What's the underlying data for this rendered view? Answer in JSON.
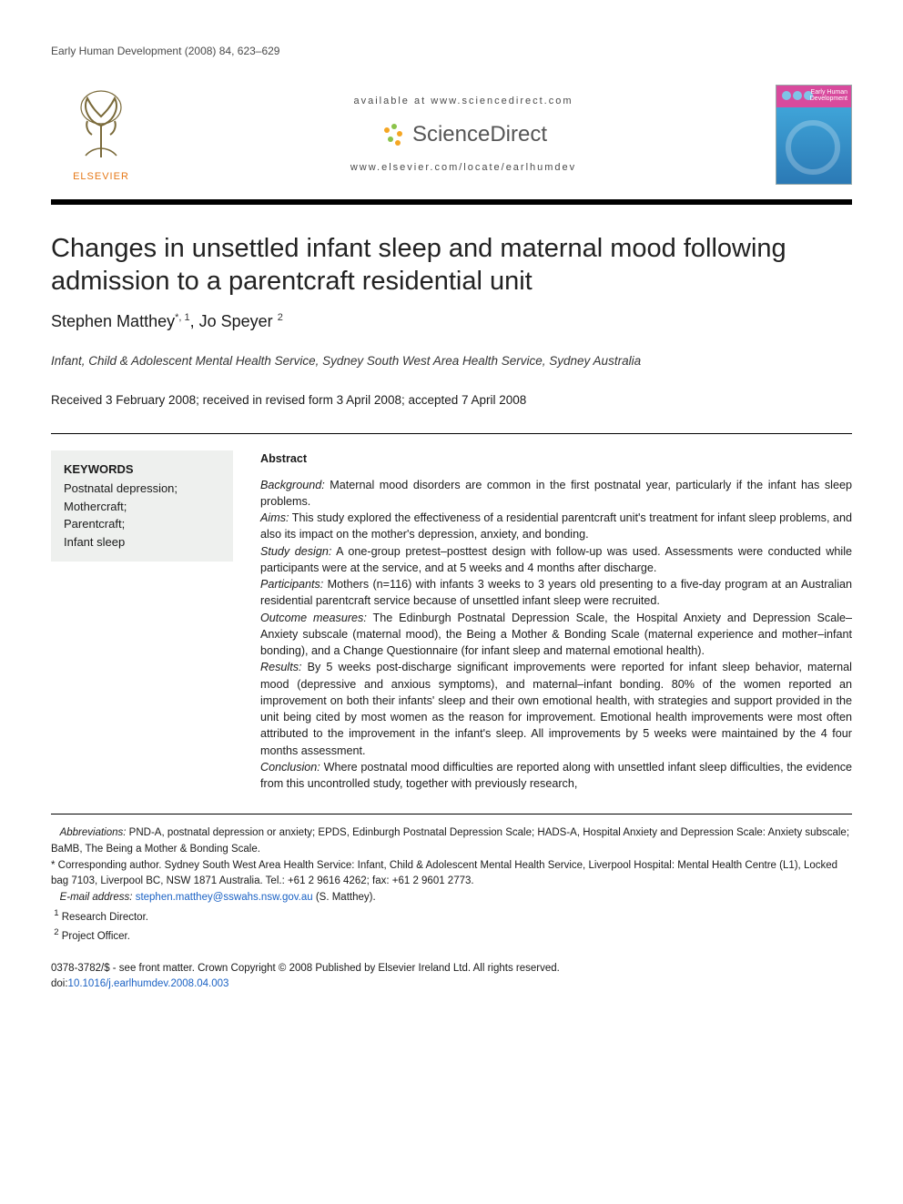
{
  "running_head": "Early Human Development (2008) 84, 623–629",
  "masthead": {
    "publisher_label": "ELSEVIER",
    "available_at": "available at www.sciencedirect.com",
    "platform_name": "ScienceDirect",
    "locate_url": "www.elsevier.com/locate/earlhumdev",
    "journal_cover_title": "Early Human Development",
    "colors": {
      "publisher_orange": "#e67817",
      "sd_orange": "#f5a623",
      "sd_green": "#8bc34a",
      "cover_top": "#d84a9d",
      "cover_bottom": "#2b79b5",
      "rule_black": "#000000"
    }
  },
  "title": "Changes in unsettled infant sleep and maternal mood following admission to a parentcraft residential unit",
  "authors_line": "Stephen Matthey*,1, Jo Speyer 2",
  "authors": [
    {
      "name": "Stephen Matthey",
      "markers": "*, 1"
    },
    {
      "name": "Jo Speyer",
      "markers": "2"
    }
  ],
  "affiliation": "Infant, Child & Adolescent Mental Health Service, Sydney South West Area Health Service, Sydney Australia",
  "history": "Received 3 February 2008; received in revised form 3 April 2008; accepted 7 April 2008",
  "keywords": {
    "heading": "KEYWORDS",
    "items": [
      "Postnatal depression;",
      "Mothercraft;",
      "Parentcraft;",
      "Infant sleep"
    ]
  },
  "abstract": {
    "heading": "Abstract",
    "sections": [
      {
        "label": "Background:",
        "text": " Maternal mood disorders are common in the first postnatal year, particularly if the infant has sleep problems."
      },
      {
        "label": "Aims:",
        "text": " This study explored the effectiveness of a residential parentcraft unit's treatment for infant sleep problems, and also its impact on the mother's depression, anxiety, and bonding."
      },
      {
        "label": "Study design:",
        "text": " A one-group pretest–posttest design with follow-up was used. Assessments were conducted while participants were at the service, and at 5 weeks and 4 months after discharge."
      },
      {
        "label": "Participants:",
        "text": " Mothers (n=116) with infants 3 weeks to 3 years old presenting to a five-day program at an Australian residential parentcraft service because of unsettled infant sleep were recruited."
      },
      {
        "label": "Outcome measures:",
        "text": " The Edinburgh Postnatal Depression Scale, the Hospital Anxiety and Depression Scale–Anxiety subscale (maternal mood), the Being a Mother & Bonding Scale (maternal experience and mother–infant bonding), and a Change Questionnaire (for infant sleep and maternal emotional health)."
      },
      {
        "label": "Results:",
        "text": " By 5 weeks post-discharge significant improvements were reported for infant sleep behavior, maternal mood (depressive and anxious symptoms), and maternal–infant bonding. 80% of the women reported an improvement on both their infants' sleep and their own emotional health, with strategies and support provided in the unit being cited by most women as the reason for improvement. Emotional health improvements were most often attributed to the improvement in the infant's sleep. All improvements by 5 weeks were maintained by the 4 four months assessment."
      },
      {
        "label": "Conclusion:",
        "text": " Where postnatal mood difficulties are reported along with unsettled infant sleep difficulties, the evidence from this uncontrolled study, together with previously research,"
      }
    ]
  },
  "footnotes": {
    "abbreviations": "Abbreviations: PND-A, postnatal depression or anxiety; EPDS, Edinburgh Postnatal Depression Scale; HADS-A, Hospital Anxiety and Depression Scale: Anxiety subscale; BaMB, The Being a Mother & Bonding Scale.",
    "corresponding": "* Corresponding author. Sydney South West Area Health Service: Infant, Child & Adolescent Mental Health Service, Liverpool Hospital: Mental Health Centre (L1), Locked bag 7103, Liverpool BC, NSW 1871 Australia. Tel.: +61 2 9616 4262; fax: +61 2 9601 2773.",
    "email_label": "E-mail address:",
    "email": "stephen.matthey@sswahs.nsw.gov.au",
    "email_attribution": "(S. Matthey).",
    "note1": "1 Research Director.",
    "note2": "2 Project Officer."
  },
  "footer": {
    "front_matter": "0378-3782/$ - see front matter. Crown Copyright © 2008 Published by Elsevier Ireland Ltd. All rights reserved.",
    "doi_label": "doi:",
    "doi": "10.1016/j.earlhumdev.2008.04.003"
  }
}
